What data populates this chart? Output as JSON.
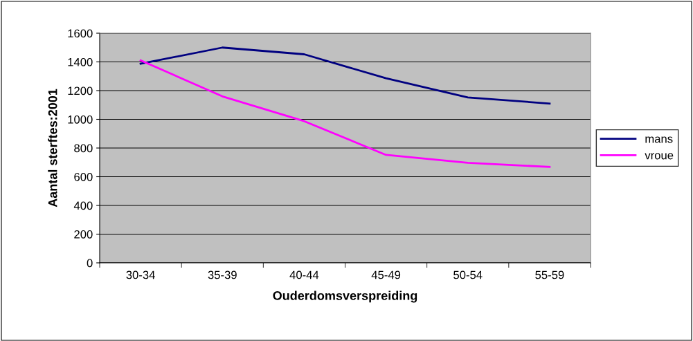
{
  "chart_data": {
    "type": "line",
    "xlabel": "Ouderdomsverspreiding",
    "ylabel": "Aantal sterftes:2001",
    "categories": [
      "30-34",
      "35-39",
      "40-44",
      "45-49",
      "50-54",
      "55-59"
    ],
    "series": [
      {
        "name": "mans",
        "color": "#000080",
        "values": [
          1387,
          1500,
          1453,
          1286,
          1152,
          1110
        ]
      },
      {
        "name": "vroue",
        "color": "#ff00ff",
        "values": [
          1411,
          1160,
          987,
          752,
          697,
          668
        ]
      }
    ],
    "ylim": [
      0,
      1600
    ],
    "yticks": [
      0,
      200,
      400,
      600,
      800,
      1000,
      1200,
      1400,
      1600
    ],
    "grid": "y",
    "legend": "right",
    "marker": "none",
    "line_style": "solid"
  }
}
